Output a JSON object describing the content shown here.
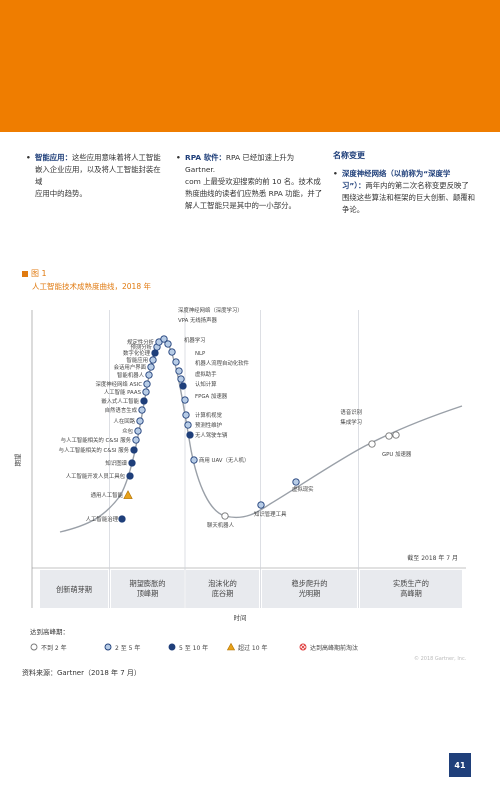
{
  "colors": {
    "orange": "#ef7d00",
    "navy": "#1f3f7a",
    "accent": "#e07a10",
    "phase_band": "#e8eaee"
  },
  "col1": {
    "t1": "智能应用：",
    "t2": "这些应用意味着将人工智能",
    "t3": "嵌入企业应用，以及将人工智能封装在域",
    "t4": "应用中的趋势。"
  },
  "col2": {
    "t1": "RPA 软件：",
    "t2": "RPA 已经加速上升为 Gartner.",
    "t3": "com 上最受欢迎搜索的前 10 名。技术成",
    "t4": "熟度曲线的读者们应熟悉 RPA 功能，并了",
    "t5": "解人工智能只是其中的一小部分。"
  },
  "col3": {
    "heading": "名称变更",
    "t1": "深度神经网络（以前称为“深度学",
    "t2": "习”）：",
    "t3": "两年内的第二次名称变更反映了",
    "t4": "围绕这些算法和框架的巨大创新、颠覆和",
    "t5": "争论。"
  },
  "figure": {
    "number": "图 1",
    "title": "人工智能技术成熟度曲线，2018 年",
    "ylabel": "期望",
    "xlabel": "时间",
    "asof": "截至 2018 年 7 月",
    "phases": [
      "创新萌芽期",
      "期望膨胀的\n顶峰期",
      "泡沫化的\n底谷期",
      "稳步爬升的\n光明期",
      "实质生产的\n高峰期"
    ]
  },
  "points": [
    {
      "label": "人工智能治理",
      "type": "10"
    },
    {
      "label": "通用人工智能",
      "type": "obs"
    },
    {
      "label": "人工智能开发人员工具包",
      "type": "10"
    },
    {
      "label": "知识图谱",
      "type": "10"
    },
    {
      "label": "与人工智能相关的 C&SI 服务",
      "type": "10"
    },
    {
      "label": "与人工智能相关的 C&SI 服务",
      "type": "5"
    },
    {
      "label": "众包",
      "type": "5"
    },
    {
      "label": "人在回路",
      "type": "5"
    },
    {
      "label": "自然语言生成",
      "type": "5"
    },
    {
      "label": "嵌入式人工智能",
      "type": "10"
    },
    {
      "label": "人工智能 PAAS",
      "type": "5"
    },
    {
      "label": "深度神经网络 ASIC",
      "type": "5"
    },
    {
      "label": "智能机器人",
      "type": "5"
    },
    {
      "label": "会话用户界面",
      "type": "5"
    },
    {
      "label": "智能应用",
      "type": "5"
    },
    {
      "label": "数字化伦理",
      "type": "10"
    },
    {
      "label": "预测分析",
      "type": "5"
    },
    {
      "label": "规定性分析",
      "type": "5"
    },
    {
      "label": "深度神经网络（深度学习）",
      "type": "5"
    },
    {
      "label": "VPA 无线扬声器",
      "type": "5"
    },
    {
      "label": "机器学习",
      "type": "5"
    },
    {
      "label": "NLP",
      "type": "5"
    },
    {
      "label": "机器人流程自动化软件",
      "type": "5"
    },
    {
      "label": "虚拟助手",
      "type": "5"
    },
    {
      "label": "认知计算",
      "type": "10"
    },
    {
      "label": "FPGA 加速器",
      "type": "5"
    },
    {
      "label": "计算机视觉",
      "type": "5"
    },
    {
      "label": "预测性维护",
      "type": "5"
    },
    {
      "label": "无人驾驶车辆",
      "type": "10"
    },
    {
      "label": "商用 UAV（无人机）",
      "type": "5"
    },
    {
      "label": "聊天机器人",
      "type": "2"
    },
    {
      "label": "知识管理工具",
      "type": "5"
    },
    {
      "label": "虚拟现实",
      "type": "5"
    },
    {
      "label": "GPU 加速器",
      "type": "2"
    },
    {
      "label": "语音识别",
      "type": "2"
    },
    {
      "label": "集成学习",
      "type": "2"
    }
  ],
  "legend": {
    "title": "达到高峰期：",
    "items": [
      {
        "type": "2",
        "label": "不到 2 年"
      },
      {
        "type": "5",
        "label": "2 至 5 年"
      },
      {
        "type": "10",
        "label": "5 至 10 年"
      },
      {
        "type": "10plus",
        "label": "超过 10 年"
      },
      {
        "type": "obs",
        "label": "达到高峰期前淘汰"
      }
    ]
  },
  "copyright": "© 2018 Gartner, Inc.",
  "source": "资料来源：Gartner（2018 年 7 月）",
  "page_number": "41"
}
